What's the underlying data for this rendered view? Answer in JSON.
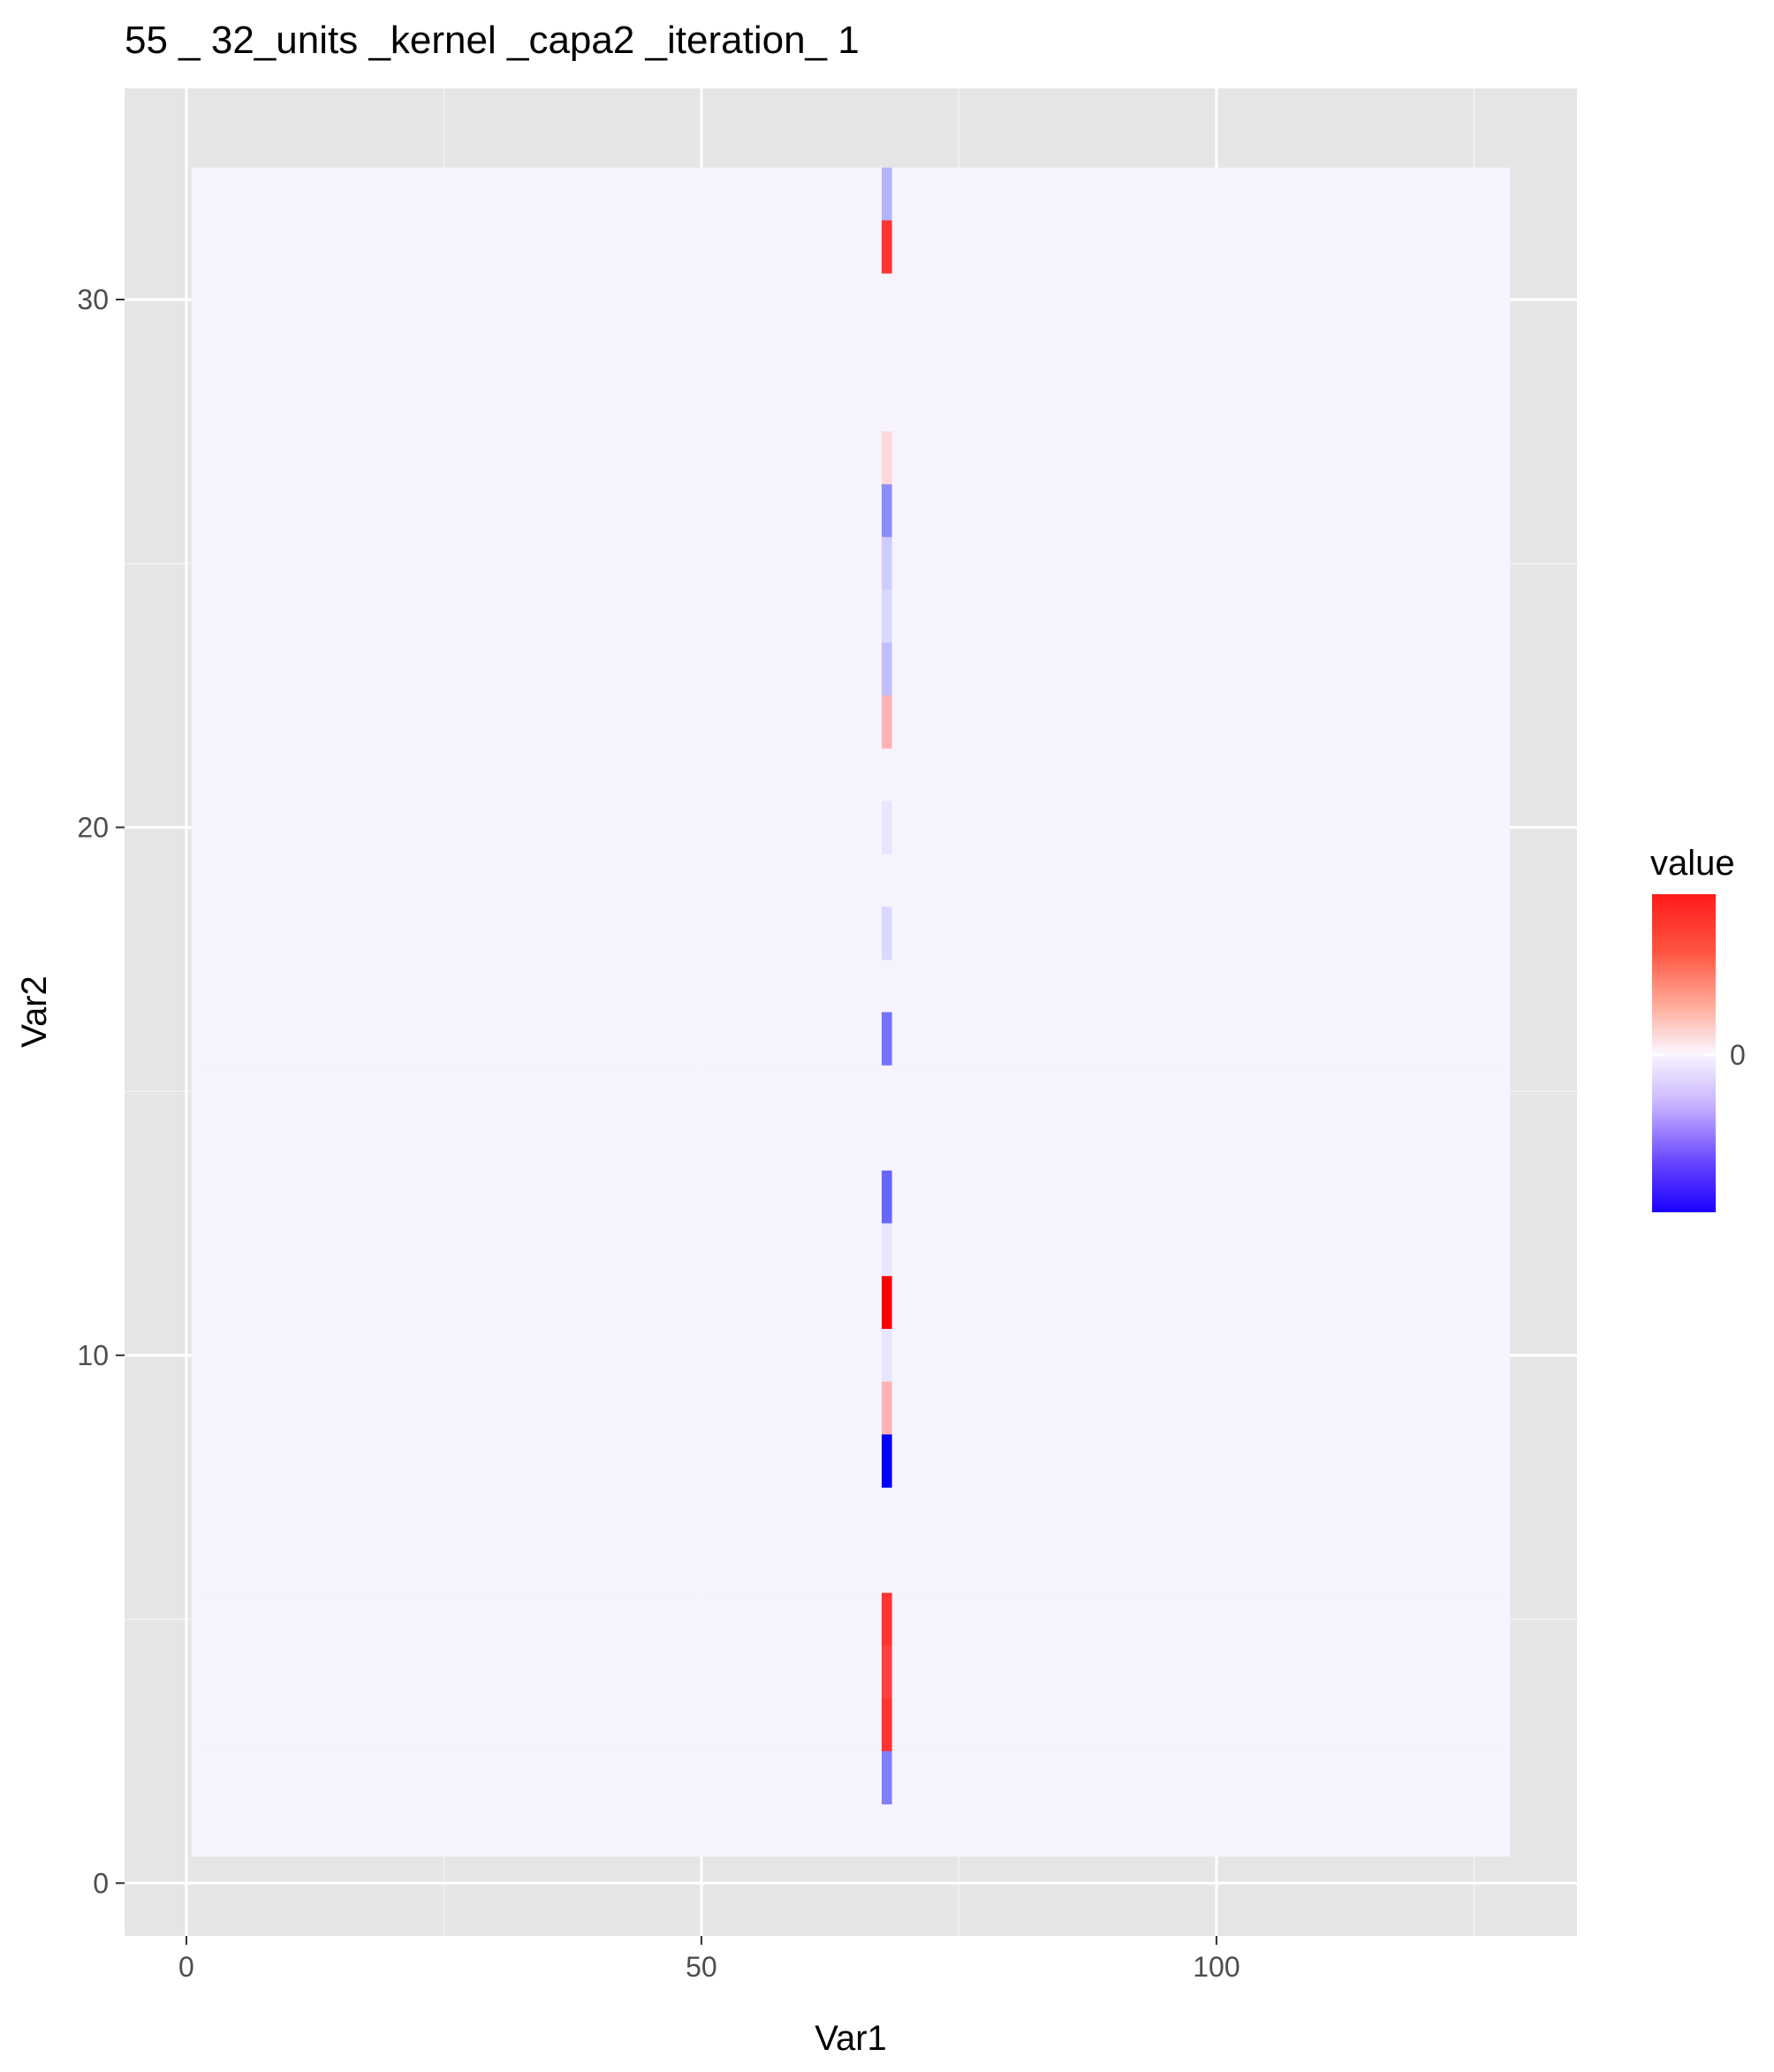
{
  "chart_data": {
    "type": "heatmap",
    "title": "55 _ 32_units _kernel _capa2 _iteration_ 1",
    "xlabel": "Var1",
    "ylabel": "Var2",
    "x_range": [
      1,
      128
    ],
    "y_range": [
      1,
      32
    ],
    "xlim": [
      -6,
      135
    ],
    "ylim": [
      -1,
      34
    ],
    "x_ticks": [
      0,
      50,
      100
    ],
    "y_ticks": [
      0,
      10,
      20,
      30
    ],
    "x_tick_labels": [
      "0",
      "50",
      "100"
    ],
    "y_tick_labels": [
      "0",
      "10",
      "20",
      "30"
    ],
    "legend": {
      "title": "value",
      "labels": [
        "0"
      ],
      "position": "right",
      "colors": {
        "low": "#0000ff",
        "mid": "#ffffff",
        "high": "#ff0000"
      }
    },
    "background_value": -0.02,
    "highlight_column": {
      "x": 68,
      "rows": [
        {
          "y": 32,
          "value": -0.3
        },
        {
          "y": 31,
          "value": 0.8
        },
        {
          "y": 27,
          "value": 0.15
        },
        {
          "y": 26,
          "value": -0.45
        },
        {
          "y": 25,
          "value": -0.2
        },
        {
          "y": 24,
          "value": -0.15
        },
        {
          "y": 23,
          "value": -0.25
        },
        {
          "y": 22,
          "value": 0.3
        },
        {
          "y": 20,
          "value": -0.1
        },
        {
          "y": 18,
          "value": -0.15
        },
        {
          "y": 16,
          "value": -0.55
        },
        {
          "y": 13,
          "value": -0.6
        },
        {
          "y": 12,
          "value": -0.1
        },
        {
          "y": 11,
          "value": 1.0
        },
        {
          "y": 10,
          "value": -0.1
        },
        {
          "y": 9,
          "value": 0.3
        },
        {
          "y": 8,
          "value": -1.0
        },
        {
          "y": 5,
          "value": 0.8
        },
        {
          "y": 4,
          "value": 0.75
        },
        {
          "y": 3,
          "value": 0.8
        },
        {
          "y": 2,
          "value": -0.5
        }
      ]
    }
  },
  "grid": true,
  "panel_background": "#e5e5e5"
}
